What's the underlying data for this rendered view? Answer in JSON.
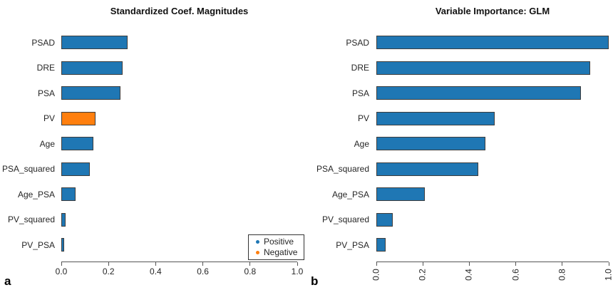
{
  "figure": {
    "background": "#ffffff",
    "axis_color": "#555555",
    "bar_edge_color": "#3d3d3d",
    "positive_color": "#1f77b4",
    "negative_color": "#ff7f0e"
  },
  "chart_data": [
    {
      "type": "bar",
      "orientation": "horizontal",
      "panel_label": "a",
      "title": "Standardized Coef. Magnitudes",
      "categories": [
        "PSAD",
        "DRE",
        "PSA",
        "PV",
        "Age",
        "PSA_squared",
        "Age_PSA",
        "PV_squared",
        "PV_PSA"
      ],
      "values": [
        0.28,
        0.26,
        0.25,
        0.145,
        0.135,
        0.12,
        0.06,
        0.018,
        0.012
      ],
      "bar_colors": [
        "#1f77b4",
        "#1f77b4",
        "#1f77b4",
        "#ff7f0e",
        "#1f77b4",
        "#1f77b4",
        "#1f77b4",
        "#1f77b4",
        "#1f77b4"
      ],
      "xlabel": "",
      "ylabel": "",
      "xlim": [
        0,
        1
      ],
      "x_ticks": [
        "0.0",
        "0.2",
        "0.4",
        "0.6",
        "0.8",
        "1.0"
      ],
      "x_tick_rotation": 0,
      "grid": false,
      "legend": {
        "position": "lower right",
        "items": [
          {
            "label": "Positive",
            "color": "#1f77b4"
          },
          {
            "label": "Negative",
            "color": "#ff7f0e"
          }
        ]
      }
    },
    {
      "type": "bar",
      "orientation": "horizontal",
      "panel_label": "b",
      "title": "Variable Importance: GLM",
      "categories": [
        "PSAD",
        "DRE",
        "PSA",
        "PV",
        "Age",
        "PSA_squared",
        "Age_PSA",
        "PV_squared",
        "PV_PSA"
      ],
      "values": [
        1.0,
        0.92,
        0.88,
        0.51,
        0.47,
        0.44,
        0.21,
        0.07,
        0.04
      ],
      "bar_colors": [
        "#1f77b4",
        "#1f77b4",
        "#1f77b4",
        "#1f77b4",
        "#1f77b4",
        "#1f77b4",
        "#1f77b4",
        "#1f77b4",
        "#1f77b4"
      ],
      "xlabel": "",
      "ylabel": "",
      "xlim": [
        0,
        1
      ],
      "x_ticks": [
        "0.0",
        "0.2",
        "0.4",
        "0.6",
        "0.8",
        "1.0"
      ],
      "x_tick_rotation": 90,
      "grid": false,
      "legend": null
    }
  ]
}
